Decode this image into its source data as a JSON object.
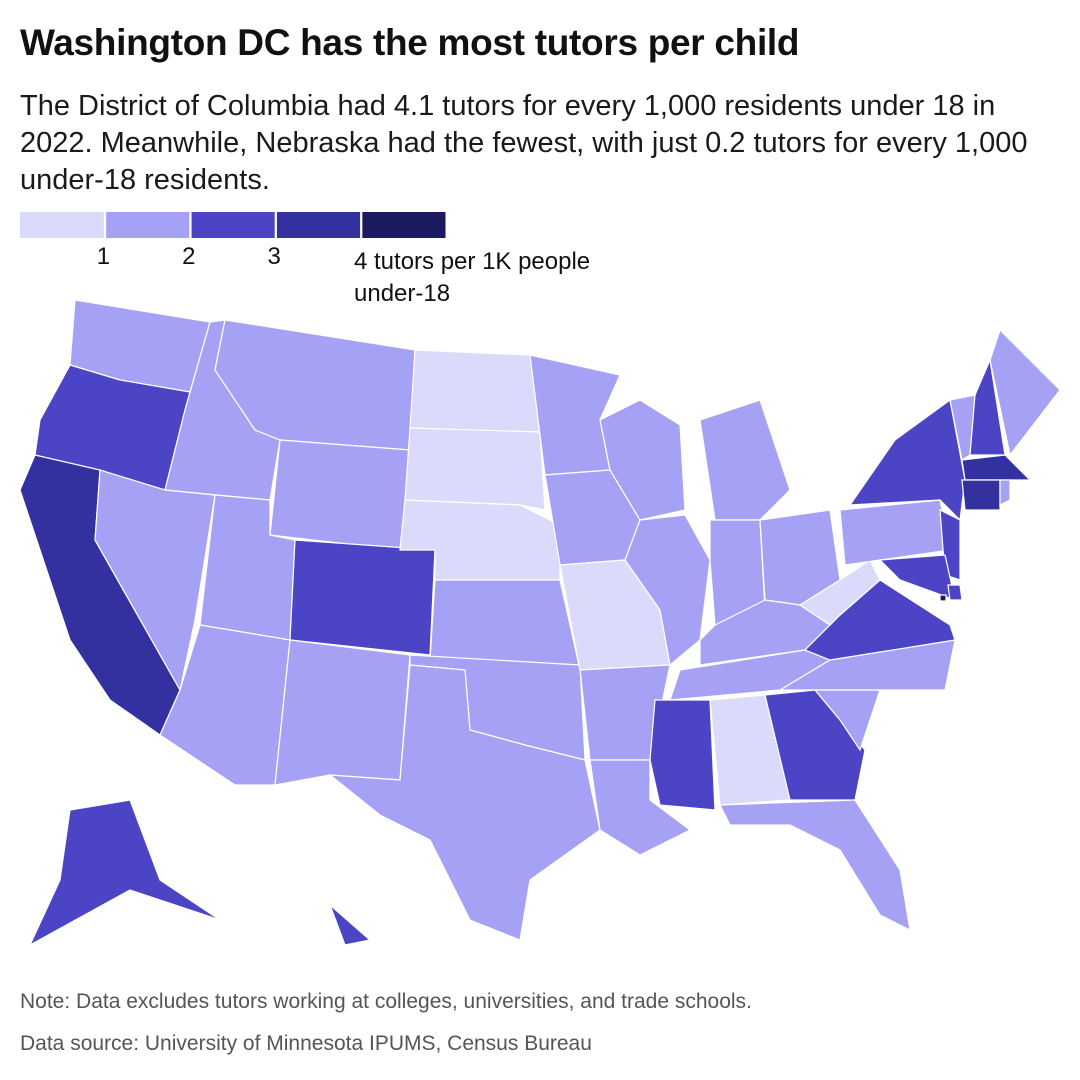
{
  "chart_data": {
    "type": "choropleth",
    "title": "Washington DC has the most tutors per child",
    "subtitle": "The District of Columbia had 4.1 tutors for every 1,000 residents under 18 in 2022. Meanwhile, Nebraska had the fewest, with just 0.2 tutors for every 1,000 under-18 residents.",
    "legend_lim": [
      0,
      5
    ],
    "legend_ticks": [
      1,
      2,
      3,
      {
        "value": 4,
        "label": "4 tutors per 1K people under-18"
      }
    ],
    "colors": [
      "#dcdafa",
      "#a5a2f5",
      "#4b45c6",
      "#33309f",
      "#1c1a5e"
    ],
    "values": [
      1.5,
      2.5,
      3.5,
      1.5,
      1.5,
      1.5,
      1.5,
      1.5,
      1.5,
      2.5,
      1.5,
      0.5,
      0.5,
      0.2,
      1.5,
      1.5,
      1.5,
      1.5,
      1.5,
      0.5,
      1.5,
      1.5,
      1.5,
      1.5,
      1.5,
      1.5,
      1.5,
      1.5,
      1.5,
      0.5,
      2.5,
      1.5,
      1.5,
      1.5,
      2.5,
      0.5,
      1.5,
      2.5,
      2.5,
      2.5,
      1.5,
      2.5,
      1.5,
      3.5,
      3.5,
      1.5,
      2.5,
      2.5,
      2.5,
      2.5,
      4.1
    ],
    "note": "Note: Data excludes tutors working at colleges, universities, and trade schools.",
    "source": "Data source: University of Minnesota IPUMS, Census Bureau"
  }
}
